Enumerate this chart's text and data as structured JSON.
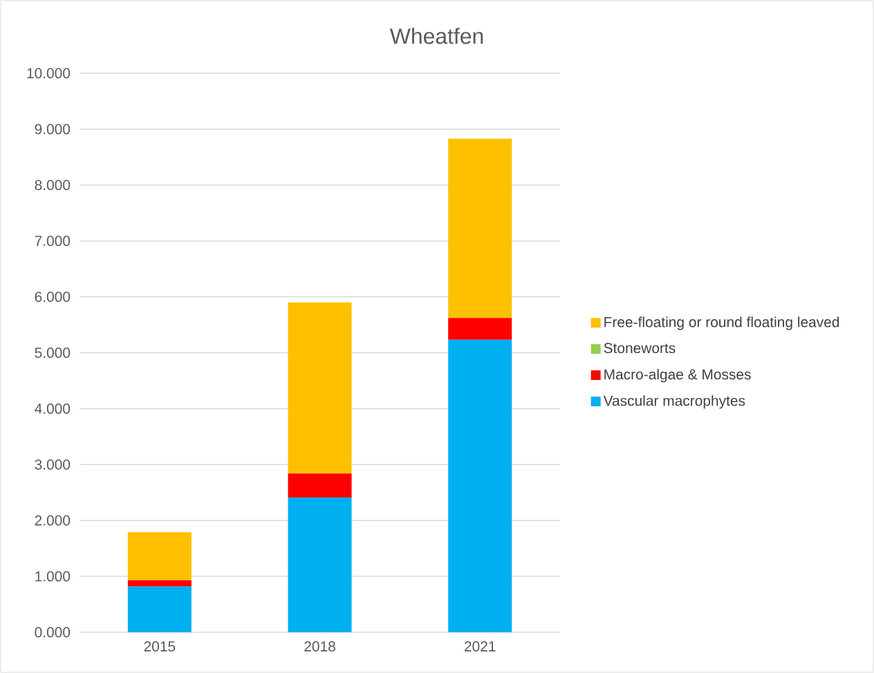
{
  "chart_data": {
    "type": "bar",
    "title": "Wheatfen",
    "stacked": true,
    "categories": [
      "2015",
      "2018",
      "2021"
    ],
    "series": [
      {
        "name": "Vascular macrophytes",
        "color": "#00b0f0",
        "values": [
          0.82,
          2.41,
          5.23
        ]
      },
      {
        "name": "Macro-algae & Mosses",
        "color": "#ff0000",
        "values": [
          0.11,
          0.43,
          0.39
        ]
      },
      {
        "name": "Stoneworts",
        "color": "#92d050",
        "values": [
          0,
          0,
          0
        ]
      },
      {
        "name": "Free-floating or round floating leaved",
        "color": "#ffc000",
        "values": [
          0.86,
          3.06,
          3.21
        ]
      }
    ],
    "ylim": [
      0,
      10
    ],
    "yticks": [
      {
        "value": 0,
        "label": "0.000"
      },
      {
        "value": 1,
        "label": "1.000"
      },
      {
        "value": 2,
        "label": "2.000"
      },
      {
        "value": 3,
        "label": "3.000"
      },
      {
        "value": 4,
        "label": "4.000"
      },
      {
        "value": 5,
        "label": "5.000"
      },
      {
        "value": 6,
        "label": "6.000"
      },
      {
        "value": 7,
        "label": "7.000"
      },
      {
        "value": 8,
        "label": "8.000"
      },
      {
        "value": 9,
        "label": "9.000"
      },
      {
        "value": 10,
        "label": "10.000"
      }
    ],
    "grid": "y",
    "legend": "right"
  }
}
